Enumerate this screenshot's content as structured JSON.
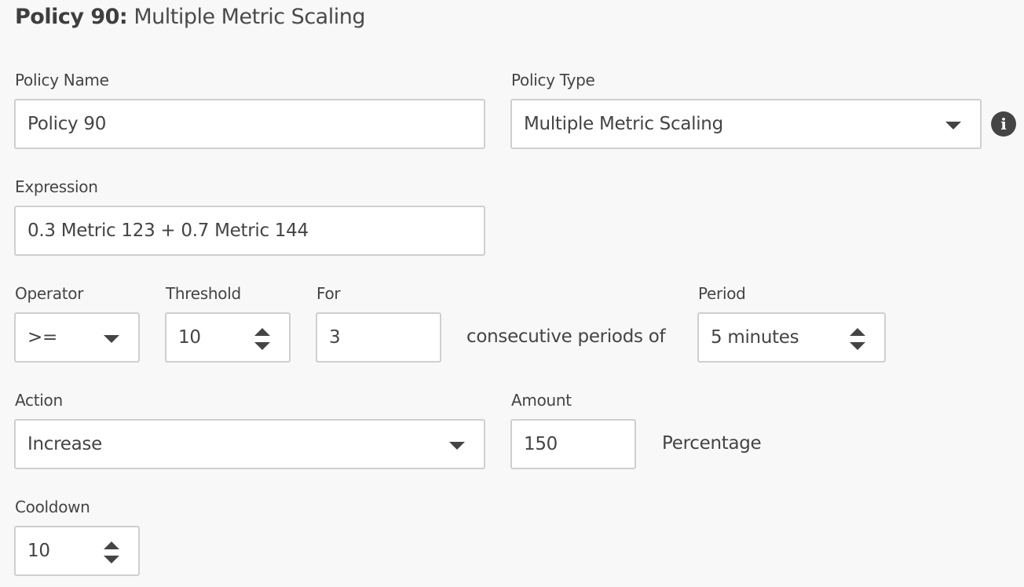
{
  "title": {
    "prefix": "Policy 90:",
    "name": "Multiple Metric Scaling"
  },
  "policy_name": {
    "label": "Policy Name",
    "value": "Policy 90"
  },
  "policy_type": {
    "label": "Policy Type",
    "value": "Multiple Metric Scaling",
    "info_icon": "info-icon"
  },
  "expression": {
    "label": "Expression",
    "value": "0.3 Metric 123 + 0.7 Metric 144"
  },
  "operator": {
    "label": "Operator",
    "value": ">="
  },
  "threshold": {
    "label": "Threshold",
    "value": "10"
  },
  "for": {
    "label": "For",
    "value": "3"
  },
  "consecutive_text": "consecutive periods of",
  "period": {
    "label": "Period",
    "value": "5 minutes"
  },
  "action": {
    "label": "Action",
    "value": "Increase"
  },
  "amount": {
    "label": "Amount",
    "value": "150",
    "unit": "Percentage"
  },
  "cooldown": {
    "label": "Cooldown",
    "value": "10"
  }
}
